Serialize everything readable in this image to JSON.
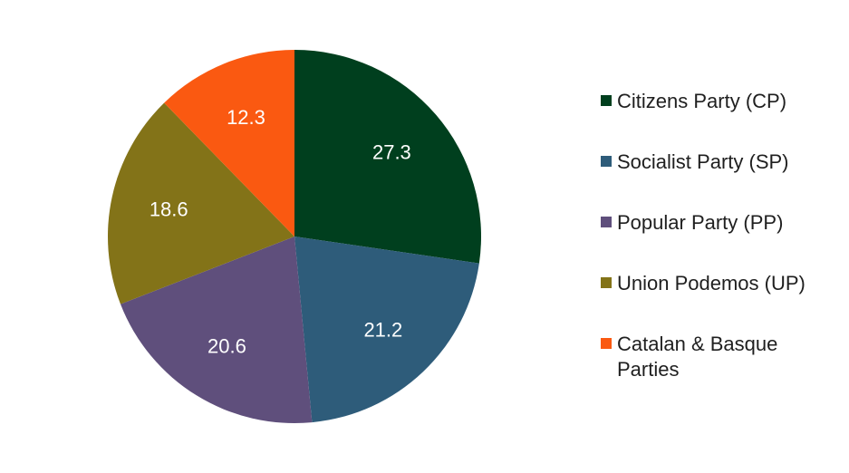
{
  "chart_data": {
    "type": "pie",
    "categories": [
      "Citizens Party (CP)",
      "Socialist Party (SP)",
      "Popular Party (PP)",
      "Union Podemos (UP)",
      "Catalan & Basque Parties"
    ],
    "values": [
      27.3,
      21.2,
      20.6,
      18.6,
      12.3
    ],
    "value_labels": [
      "27.3",
      "21.2",
      "20.6",
      "18.6",
      "12.3"
    ],
    "colors": [
      "#003f1e",
      "#2e5c7a",
      "#5f4f7c",
      "#837318",
      "#fa5911"
    ],
    "legend": {
      "position": "right",
      "entries": [
        {
          "lines": [
            "Citizens Party (CP)"
          ]
        },
        {
          "lines": [
            "Socialist Party (SP)"
          ]
        },
        {
          "lines": [
            "Popular Party (PP)"
          ]
        },
        {
          "lines": [
            "Union Podemos (UP)"
          ]
        },
        {
          "lines": [
            "Catalan & Basque",
            "Parties"
          ]
        }
      ]
    },
    "start_angle_deg": 0,
    "direction": "clockwise"
  }
}
